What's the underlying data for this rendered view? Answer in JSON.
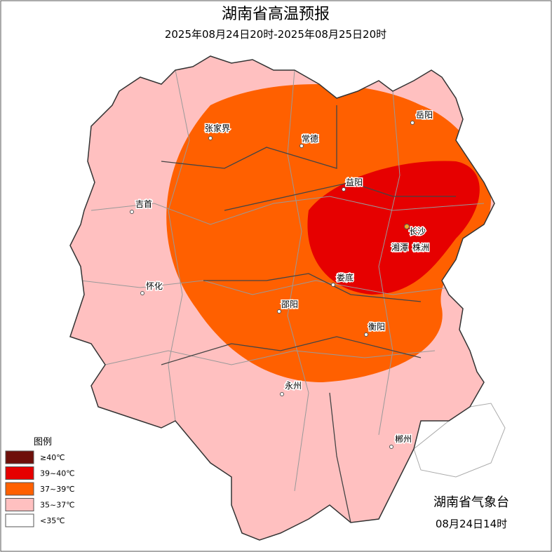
{
  "header": {
    "title": "湖南省高温预报",
    "subtitle": "2025年08月24日20时-2025年08月25日20时"
  },
  "cities": [
    "张家界",
    "常德",
    "岳阳",
    "益阳",
    "吉首",
    "长沙",
    "湘潭",
    "株洲",
    "怀化",
    "娄底",
    "邵阳",
    "衡阳",
    "永州",
    "郴州"
  ],
  "legend": {
    "title": "图例",
    "items": [
      {
        "label": "≥40℃",
        "color": "#6e0f0a"
      },
      {
        "label": "39~40℃",
        "color": "#e60000"
      },
      {
        "label": "37~39℃",
        "color": "#ff6000"
      },
      {
        "label": "35~37℃",
        "color": "#ffc0c0"
      },
      {
        "label": "<35℃",
        "color": "#ffffff"
      }
    ]
  },
  "footer": {
    "issuer": "湖南省气象台",
    "time": "08月24日14时"
  }
}
